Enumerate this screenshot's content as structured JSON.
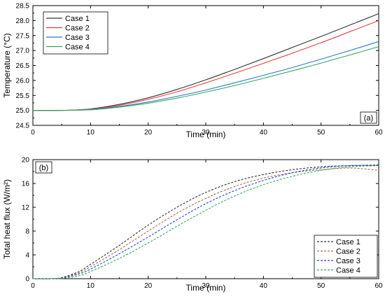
{
  "chart_data": [
    {
      "type": "line",
      "panel_label": "(a)",
      "xlabel": "Time (min)",
      "ylabel": "Temperature (°C)",
      "xlim": [
        0,
        60
      ],
      "ylim": [
        24.5,
        28.5
      ],
      "xticks": [
        0,
        10,
        20,
        30,
        40,
        50,
        60
      ],
      "yticks": [
        24.5,
        25.0,
        25.5,
        26.0,
        26.5,
        27.0,
        27.5,
        28.0,
        28.5
      ],
      "ytick_labels": [
        "24.5",
        "25.0",
        "25.5",
        "26.0",
        "26.5",
        "27.0",
        "27.5",
        "28.0",
        "28.5"
      ],
      "legend_position": "top-left",
      "line_style": "solid",
      "x": [
        0,
        5,
        10,
        15,
        20,
        25,
        30,
        35,
        40,
        45,
        50,
        55,
        60
      ],
      "series": [
        {
          "name": "Case 1",
          "color": "#333333",
          "values": [
            25.0,
            25.0,
            25.05,
            25.2,
            25.42,
            25.7,
            26.02,
            26.37,
            26.73,
            27.1,
            27.47,
            27.85,
            28.23
          ]
        },
        {
          "name": "Case 2",
          "color": "#e8413f",
          "values": [
            25.0,
            25.0,
            25.04,
            25.17,
            25.37,
            25.62,
            25.92,
            26.24,
            26.57,
            26.91,
            27.26,
            27.63,
            28.0
          ]
        },
        {
          "name": "Case 3",
          "color": "#2e78c7",
          "values": [
            25.0,
            25.0,
            25.03,
            25.13,
            25.28,
            25.47,
            25.68,
            25.92,
            26.17,
            26.43,
            26.71,
            27.0,
            27.3
          ]
        },
        {
          "name": "Case 4",
          "color": "#2eaa5c",
          "values": [
            25.0,
            25.0,
            25.02,
            25.11,
            25.24,
            25.41,
            25.61,
            25.83,
            26.07,
            26.32,
            26.58,
            26.85,
            27.13
          ]
        }
      ]
    },
    {
      "type": "line",
      "panel_label": "(b)",
      "xlabel": "Time (min)",
      "ylabel": "Total heat flux (W/m²)",
      "xlim": [
        0,
        60
      ],
      "ylim": [
        0,
        20
      ],
      "xticks": [
        0,
        10,
        20,
        30,
        40,
        50,
        60
      ],
      "yticks": [
        0,
        4,
        8,
        12,
        16,
        20
      ],
      "ytick_labels": [
        "0",
        "4",
        "8",
        "12",
        "16",
        "20"
      ],
      "legend_position": "bottom-right",
      "line_style": "dashed",
      "x": [
        0,
        3,
        5,
        8,
        10,
        15,
        20,
        25,
        30,
        35,
        40,
        45,
        50,
        55,
        60
      ],
      "series": [
        {
          "name": "Case 1",
          "color": "#333333",
          "values": [
            0,
            0,
            0.2,
            1.2,
            2.4,
            5.6,
            9.0,
            12.0,
            14.5,
            16.3,
            17.5,
            18.3,
            18.8,
            19.0,
            19.1
          ]
        },
        {
          "name": "Case 2",
          "color": "#a8694a",
          "values": [
            0,
            0,
            0.15,
            1.0,
            2.0,
            4.9,
            8.0,
            11.0,
            13.5,
            15.5,
            16.9,
            17.8,
            18.3,
            18.6,
            18.2
          ]
        },
        {
          "name": "Case 3",
          "color": "#2a40d0",
          "values": [
            0,
            0,
            0.1,
            0.8,
            1.6,
            4.2,
            7.0,
            9.9,
            12.6,
            14.8,
            16.5,
            17.8,
            18.6,
            19.0,
            19.0
          ]
        },
        {
          "name": "Case 4",
          "color": "#2eaa5c",
          "values": [
            0,
            0,
            0.05,
            0.5,
            1.2,
            3.4,
            6.0,
            8.8,
            11.5,
            13.9,
            15.8,
            17.2,
            18.2,
            18.8,
            19.0
          ]
        }
      ]
    }
  ]
}
